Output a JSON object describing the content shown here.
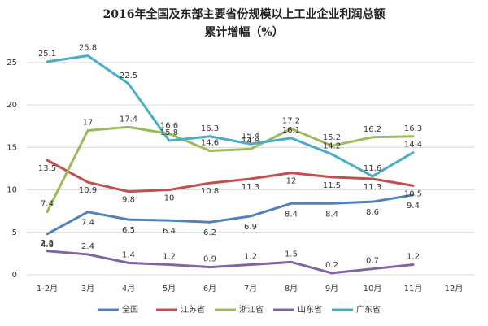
{
  "chart_data": {
    "type": "line",
    "title": "2016年全国及东部主要省份规模以上工业企业利润总额",
    "subtitle": "累计增幅（%）",
    "categories": [
      "1-2月",
      "3月",
      "4月",
      "5月",
      "6月",
      "7月",
      "8月",
      "9月",
      "10月",
      "11月",
      "12月"
    ],
    "series": [
      {
        "name": "全国",
        "color": "#4f81bd",
        "values": [
          4.8,
          7.4,
          6.5,
          6.4,
          6.2,
          6.9,
          8.4,
          8.4,
          8.6,
          9.4,
          null
        ]
      },
      {
        "name": "江苏省",
        "color": "#c0504d",
        "values": [
          13.5,
          10.9,
          9.8,
          10,
          10.8,
          11.3,
          12,
          11.5,
          11.3,
          10.5,
          null
        ]
      },
      {
        "name": "浙江省",
        "color": "#9bbb59",
        "values": [
          7.4,
          17,
          17.4,
          16.6,
          14.6,
          14.8,
          17.2,
          15.2,
          16.2,
          16.3,
          null
        ]
      },
      {
        "name": "山东省",
        "color": "#8064a2",
        "values": [
          2.8,
          2.4,
          1.4,
          1.2,
          0.9,
          1.2,
          1.5,
          0.2,
          0.7,
          1.2,
          null
        ]
      },
      {
        "name": "广东省",
        "color": "#4bacc6",
        "values": [
          25.1,
          25.8,
          22.5,
          15.8,
          16.3,
          15.4,
          16.1,
          14.2,
          11.6,
          14.4,
          null
        ]
      }
    ],
    "ylim": [
      0,
      27
    ],
    "yticks": [
      0,
      5,
      10,
      15,
      20,
      25
    ],
    "grid": true,
    "legend": "bottom"
  }
}
